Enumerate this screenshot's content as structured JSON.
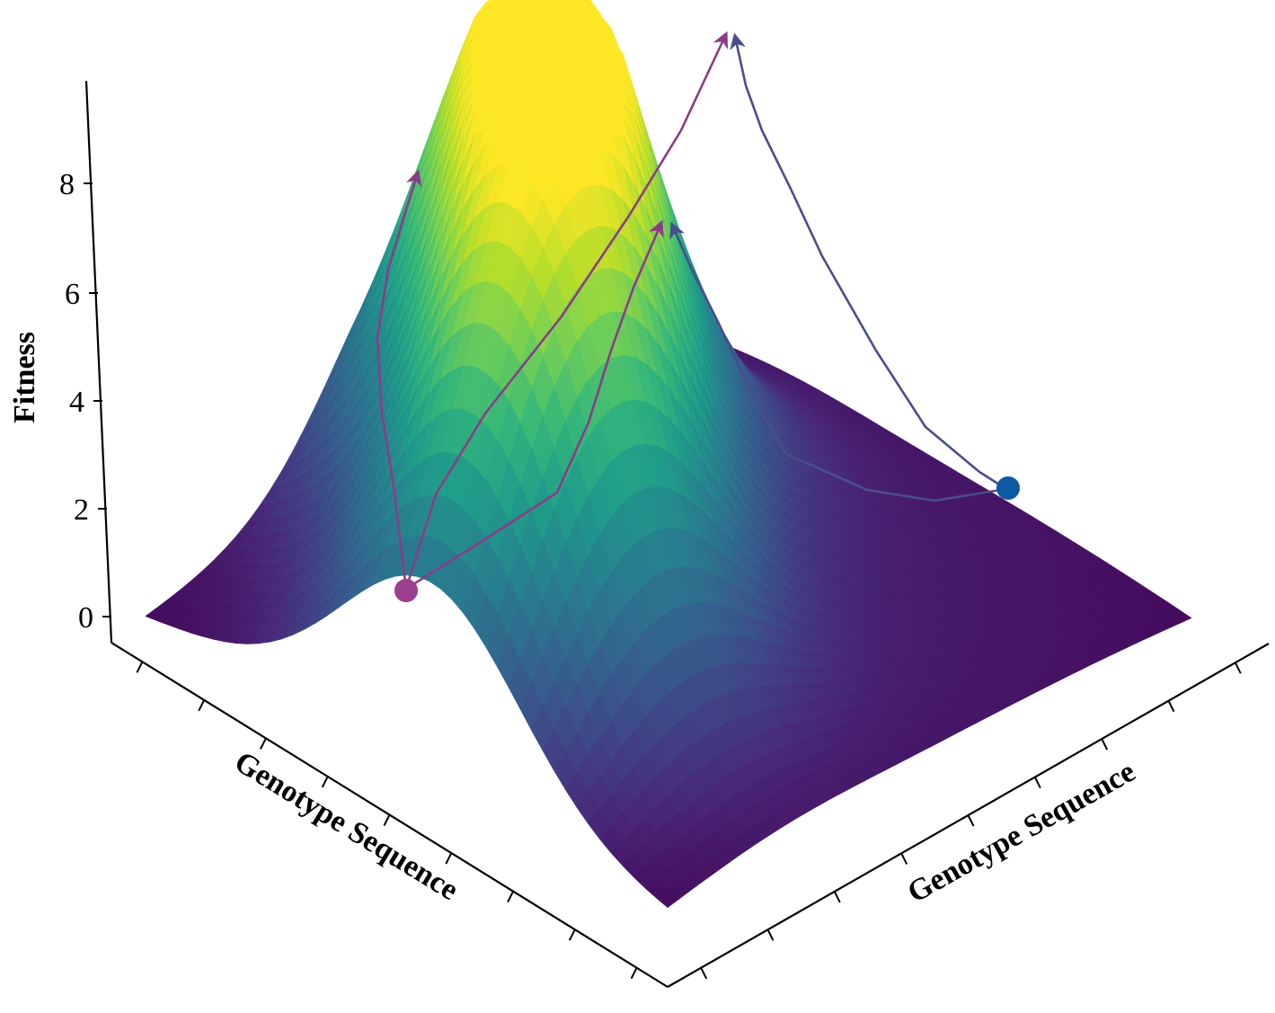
{
  "chart_data": {
    "type": "surface3d",
    "title": "",
    "zlabel": "Fitness",
    "xlabel": "Genotype Sequence",
    "ylabel": "Genotype Sequence",
    "zlim": [
      0,
      9.8
    ],
    "zticks": [
      "0",
      "2",
      "4",
      "6",
      "8"
    ],
    "grid": false,
    "colormap": "viridis",
    "peaks": [
      {
        "height": 9.6
      },
      {
        "height": 8.2
      },
      {
        "height": 7.3
      }
    ],
    "start_points": [
      {
        "color": "#9c3f8e",
        "fitness": 0.8
      },
      {
        "color": "#0b5aa2",
        "fitness": 2.4
      }
    ],
    "evolutionary_paths": [
      {
        "color": "#8a3c88",
        "from": "start-1",
        "to": "peak-2"
      },
      {
        "color": "#8a3c88",
        "from": "start-1",
        "to": "peak-1"
      },
      {
        "color": "#8a3c88",
        "from": "start-1",
        "to": "peak-3"
      },
      {
        "color": "#4a4d8c",
        "from": "start-2",
        "to": "peak-1"
      },
      {
        "color": "#4a4d8c",
        "from": "start-2",
        "to": "peak-3"
      }
    ]
  }
}
